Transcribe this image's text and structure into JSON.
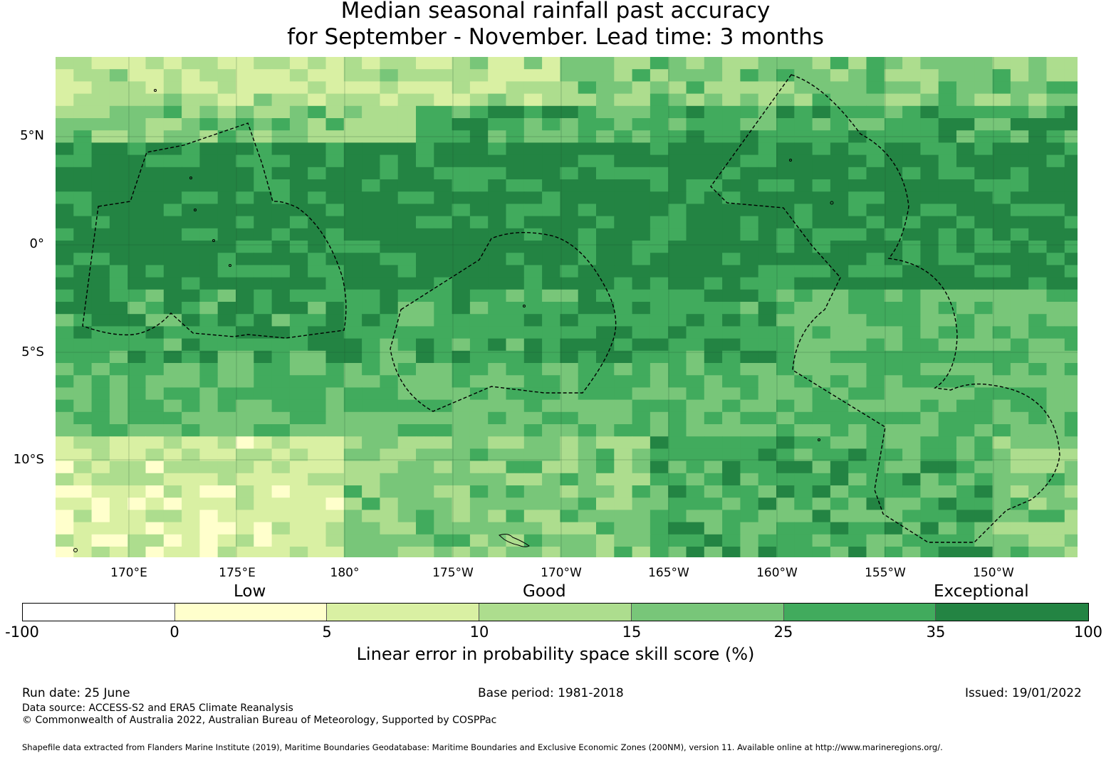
{
  "title": {
    "line1": "Median seasonal rainfall past accuracy",
    "line2": "for September - November. Lead time: 3 months"
  },
  "map": {
    "lat_labels": [
      "5°N",
      "0°",
      "5°S",
      "10°S"
    ],
    "lon_labels": [
      "170°E",
      "175°E",
      "180°",
      "175°W",
      "170°W",
      "165°W",
      "160°W",
      "155°W",
      "150°W"
    ]
  },
  "colorbar": {
    "category_labels": [
      "Low",
      "Good",
      "Exceptional"
    ],
    "ticks": [
      "-100",
      "0",
      "5",
      "10",
      "15",
      "25",
      "35",
      "100"
    ],
    "colors": [
      "#ffffff",
      "#ffffcc",
      "#d9f0a3",
      "#addd8e",
      "#78c679",
      "#41ab5d",
      "#238443"
    ],
    "title": "Linear error in probability space skill score (%)"
  },
  "footer": {
    "run_date": "Run date: 25 June",
    "base_period": "Base period: 1981-2018",
    "issued": "Issued: 19/01/2022",
    "data_source": "Data source: ACCESS-S2 and ERA5 Climate Reanalysis",
    "copyright": "© Commonwealth of Australia 2022, Australian Bureau of Meteorology, Supported by COSPPac",
    "shapefile": "Shapefile data extracted from Flanders Marine Institute (2019), Maritime Boundaries Geodatabase: Maritime Boundaries and Exclusive Economic Zones (200NM), version 11. Available online at http://www.marineregions.org/."
  }
}
